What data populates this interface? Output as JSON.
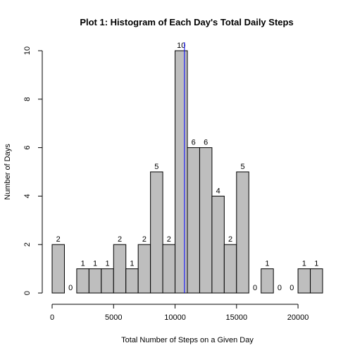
{
  "chart_data": {
    "type": "bar",
    "subtype": "histogram",
    "title": "Plot 1: Histogram of Each Day's Total Daily Steps",
    "xlabel": "Total Number of Steps on a Given Day",
    "ylabel": "Number of Days",
    "bins": [
      {
        "start": 0,
        "end": 1000,
        "count": 2
      },
      {
        "start": 1000,
        "end": 2000,
        "count": 0
      },
      {
        "start": 2000,
        "end": 3000,
        "count": 1
      },
      {
        "start": 3000,
        "end": 4000,
        "count": 1
      },
      {
        "start": 4000,
        "end": 5000,
        "count": 1
      },
      {
        "start": 5000,
        "end": 6000,
        "count": 2
      },
      {
        "start": 6000,
        "end": 7000,
        "count": 1
      },
      {
        "start": 7000,
        "end": 8000,
        "count": 2
      },
      {
        "start": 8000,
        "end": 9000,
        "count": 5
      },
      {
        "start": 9000,
        "end": 10000,
        "count": 2
      },
      {
        "start": 10000,
        "end": 11000,
        "count": 10
      },
      {
        "start": 11000,
        "end": 12000,
        "count": 6
      },
      {
        "start": 12000,
        "end": 13000,
        "count": 6
      },
      {
        "start": 13000,
        "end": 14000,
        "count": 4
      },
      {
        "start": 14000,
        "end": 15000,
        "count": 2
      },
      {
        "start": 15000,
        "end": 16000,
        "count": 5
      },
      {
        "start": 16000,
        "end": 17000,
        "count": 0
      },
      {
        "start": 17000,
        "end": 18000,
        "count": 1
      },
      {
        "start": 18000,
        "end": 19000,
        "count": 0
      },
      {
        "start": 19000,
        "end": 20000,
        "count": 0
      },
      {
        "start": 20000,
        "end": 21000,
        "count": 1
      },
      {
        "start": 21000,
        "end": 22000,
        "count": 1
      }
    ],
    "xlim": [
      0,
      22000
    ],
    "ylim": [
      0,
      10
    ],
    "x_ticks": [
      0,
      5000,
      10000,
      15000,
      20000
    ],
    "y_ticks": [
      0,
      2,
      4,
      6,
      8,
      10
    ],
    "reference_line": {
      "x": 10766,
      "color": "#0000ff"
    },
    "bar_fill": "#bebebe",
    "bar_stroke": "#000000",
    "grid": false,
    "legend": "none"
  }
}
